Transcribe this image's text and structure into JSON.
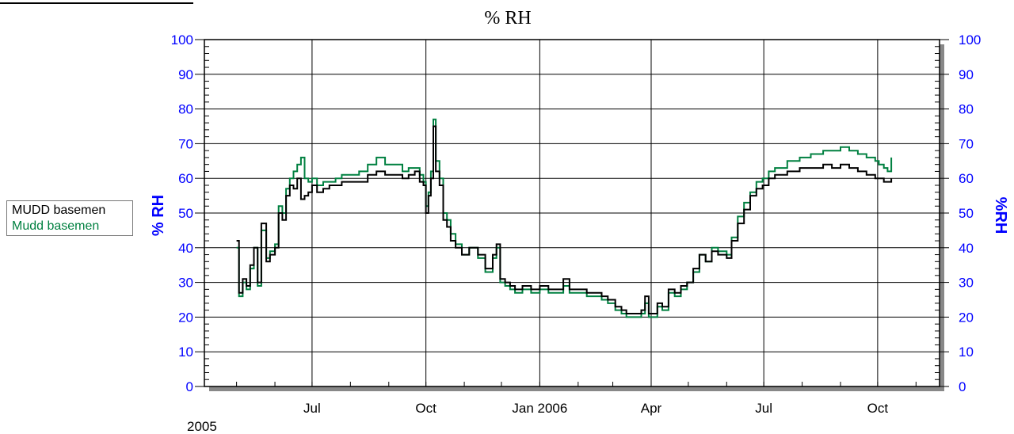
{
  "chart_data": {
    "type": "line",
    "title": "% RH",
    "y_left_label": "% RH",
    "y_right_label": "%RH",
    "y_ticks": [
      0,
      10,
      20,
      30,
      40,
      50,
      60,
      70,
      80,
      90,
      100
    ],
    "ylim": [
      0,
      100
    ],
    "xlim": [
      "2005-04-05",
      "2006-11-20"
    ],
    "x_tick_labels": [
      {
        "date": "2005-07-01",
        "label": "Jul"
      },
      {
        "date": "2005-10-01",
        "label": "Oct"
      },
      {
        "date": "2006-01-01",
        "label": "Jan 2006"
      },
      {
        "date": "2006-04-01",
        "label": "Apr"
      },
      {
        "date": "2006-07-01",
        "label": "Jul"
      },
      {
        "date": "2006-10-01",
        "label": "Oct"
      }
    ],
    "x_year_label": "2005",
    "grid": true,
    "legend_position": "left",
    "series": [
      {
        "name": "MUDD basemen",
        "color": "#000000",
        "x": [
          "2005-05-01",
          "2005-05-03",
          "2005-05-06",
          "2005-05-09",
          "2005-05-12",
          "2005-05-15",
          "2005-05-18",
          "2005-05-21",
          "2005-05-25",
          "2005-05-28",
          "2005-06-01",
          "2005-06-04",
          "2005-06-07",
          "2005-06-10",
          "2005-06-13",
          "2005-06-16",
          "2005-06-19",
          "2005-06-22",
          "2005-06-25",
          "2005-06-28",
          "2005-07-01",
          "2005-07-05",
          "2005-07-10",
          "2005-07-15",
          "2005-07-20",
          "2005-07-25",
          "2005-08-01",
          "2005-08-08",
          "2005-08-15",
          "2005-08-22",
          "2005-08-29",
          "2005-09-05",
          "2005-09-12",
          "2005-09-17",
          "2005-09-22",
          "2005-09-26",
          "2005-09-29",
          "2005-10-01",
          "2005-10-03",
          "2005-10-05",
          "2005-10-07",
          "2005-10-09",
          "2005-10-12",
          "2005-10-15",
          "2005-10-18",
          "2005-10-21",
          "2005-10-25",
          "2005-10-30",
          "2005-11-05",
          "2005-11-12",
          "2005-11-18",
          "2005-11-24",
          "2005-11-27",
          "2005-11-30",
          "2005-12-04",
          "2005-12-08",
          "2005-12-12",
          "2005-12-18",
          "2005-12-25",
          "2006-01-01",
          "2006-01-08",
          "2006-01-15",
          "2006-01-20",
          "2006-01-25",
          "2006-02-01",
          "2006-02-08",
          "2006-02-15",
          "2006-02-20",
          "2006-02-25",
          "2006-03-03",
          "2006-03-08",
          "2006-03-12",
          "2006-03-16",
          "2006-03-20",
          "2006-03-24",
          "2006-03-27",
          "2006-03-30",
          "2006-04-02",
          "2006-04-06",
          "2006-04-10",
          "2006-04-15",
          "2006-04-20",
          "2006-04-25",
          "2006-04-30",
          "2006-05-05",
          "2006-05-10",
          "2006-05-15",
          "2006-05-20",
          "2006-05-25",
          "2006-06-01",
          "2006-06-05",
          "2006-06-10",
          "2006-06-15",
          "2006-06-20",
          "2006-06-25",
          "2006-06-30",
          "2006-07-05",
          "2006-07-10",
          "2006-07-20",
          "2006-07-30",
          "2006-08-08",
          "2006-08-18",
          "2006-08-25",
          "2006-09-01",
          "2006-09-08",
          "2006-09-15",
          "2006-09-22",
          "2006-09-29",
          "2006-10-02",
          "2006-10-06",
          "2006-10-09",
          "2006-10-12"
        ],
        "y": [
          42,
          27,
          31,
          29,
          35,
          40,
          30,
          47,
          36,
          38,
          40,
          50,
          48,
          55,
          58,
          57,
          60,
          54,
          55,
          56,
          58,
          56,
          57,
          58,
          58,
          59,
          59,
          59,
          61,
          62,
          61,
          61,
          60,
          61,
          62,
          59,
          58,
          50,
          55,
          60,
          75,
          62,
          58,
          48,
          46,
          42,
          40,
          38,
          40,
          38,
          34,
          38,
          41,
          31,
          30,
          29,
          28,
          29,
          28,
          29,
          28,
          28,
          31,
          28,
          28,
          27,
          27,
          26,
          25,
          23,
          22,
          21,
          21,
          21,
          22,
          26,
          21,
          21,
          24,
          23,
          28,
          27,
          29,
          30,
          34,
          38,
          36,
          39,
          38,
          37,
          42,
          47,
          51,
          55,
          57,
          58,
          60,
          61,
          62,
          63,
          63,
          64,
          63,
          64,
          63,
          62,
          61,
          60,
          60,
          59,
          59,
          60
        ]
      },
      {
        "name": "Mudd basemen",
        "color": "#008040",
        "x": [
          "2005-05-01",
          "2005-05-03",
          "2005-05-06",
          "2005-05-09",
          "2005-05-12",
          "2005-05-15",
          "2005-05-18",
          "2005-05-21",
          "2005-05-25",
          "2005-05-28",
          "2005-06-01",
          "2005-06-04",
          "2005-06-07",
          "2005-06-10",
          "2005-06-13",
          "2005-06-16",
          "2005-06-19",
          "2005-06-22",
          "2005-06-25",
          "2005-06-28",
          "2005-07-01",
          "2005-07-05",
          "2005-07-10",
          "2005-07-15",
          "2005-07-20",
          "2005-07-25",
          "2005-08-01",
          "2005-08-08",
          "2005-08-15",
          "2005-08-22",
          "2005-08-29",
          "2005-09-05",
          "2005-09-12",
          "2005-09-17",
          "2005-09-22",
          "2005-09-26",
          "2005-09-29",
          "2005-10-01",
          "2005-10-03",
          "2005-10-05",
          "2005-10-07",
          "2005-10-09",
          "2005-10-12",
          "2005-10-15",
          "2005-10-18",
          "2005-10-21",
          "2005-10-25",
          "2005-10-30",
          "2005-11-05",
          "2005-11-12",
          "2005-11-18",
          "2005-11-24",
          "2005-11-27",
          "2005-11-30",
          "2005-12-04",
          "2005-12-08",
          "2005-12-12",
          "2005-12-18",
          "2005-12-25",
          "2006-01-01",
          "2006-01-08",
          "2006-01-15",
          "2006-01-20",
          "2006-01-25",
          "2006-02-01",
          "2006-02-08",
          "2006-02-15",
          "2006-02-20",
          "2006-02-25",
          "2006-03-03",
          "2006-03-08",
          "2006-03-12",
          "2006-03-16",
          "2006-03-20",
          "2006-03-24",
          "2006-03-27",
          "2006-03-30",
          "2006-04-02",
          "2006-04-06",
          "2006-04-10",
          "2006-04-15",
          "2006-04-20",
          "2006-04-25",
          "2006-04-30",
          "2006-05-05",
          "2006-05-10",
          "2006-05-15",
          "2006-05-20",
          "2006-05-25",
          "2006-06-01",
          "2006-06-05",
          "2006-06-10",
          "2006-06-15",
          "2006-06-20",
          "2006-06-25",
          "2006-06-30",
          "2006-07-05",
          "2006-07-10",
          "2006-07-20",
          "2006-07-30",
          "2006-08-08",
          "2006-08-18",
          "2006-08-25",
          "2006-09-01",
          "2006-09-08",
          "2006-09-15",
          "2006-09-22",
          "2006-09-29",
          "2006-10-02",
          "2006-10-06",
          "2006-10-09",
          "2006-10-12"
        ],
        "y": [
          40,
          26,
          30,
          28,
          34,
          40,
          29,
          45,
          37,
          39,
          41,
          52,
          50,
          57,
          60,
          62,
          64,
          66,
          60,
          59,
          60,
          58,
          59,
          59,
          60,
          61,
          61,
          62,
          64,
          66,
          64,
          64,
          62,
          63,
          63,
          61,
          59,
          52,
          56,
          62,
          77,
          65,
          60,
          50,
          48,
          44,
          41,
          38,
          40,
          37,
          33,
          37,
          40,
          30,
          29,
          28,
          27,
          28,
          27,
          28,
          27,
          27,
          29,
          27,
          27,
          26,
          26,
          25,
          24,
          22,
          21,
          20,
          20,
          20,
          21,
          24,
          20,
          20,
          23,
          22,
          27,
          26,
          28,
          30,
          33,
          38,
          36,
          40,
          39,
          38,
          43,
          49,
          53,
          56,
          59,
          60,
          62,
          63,
          65,
          66,
          67,
          68,
          68,
          69,
          68,
          67,
          66,
          65,
          64,
          63,
          62,
          66
        ]
      }
    ]
  }
}
